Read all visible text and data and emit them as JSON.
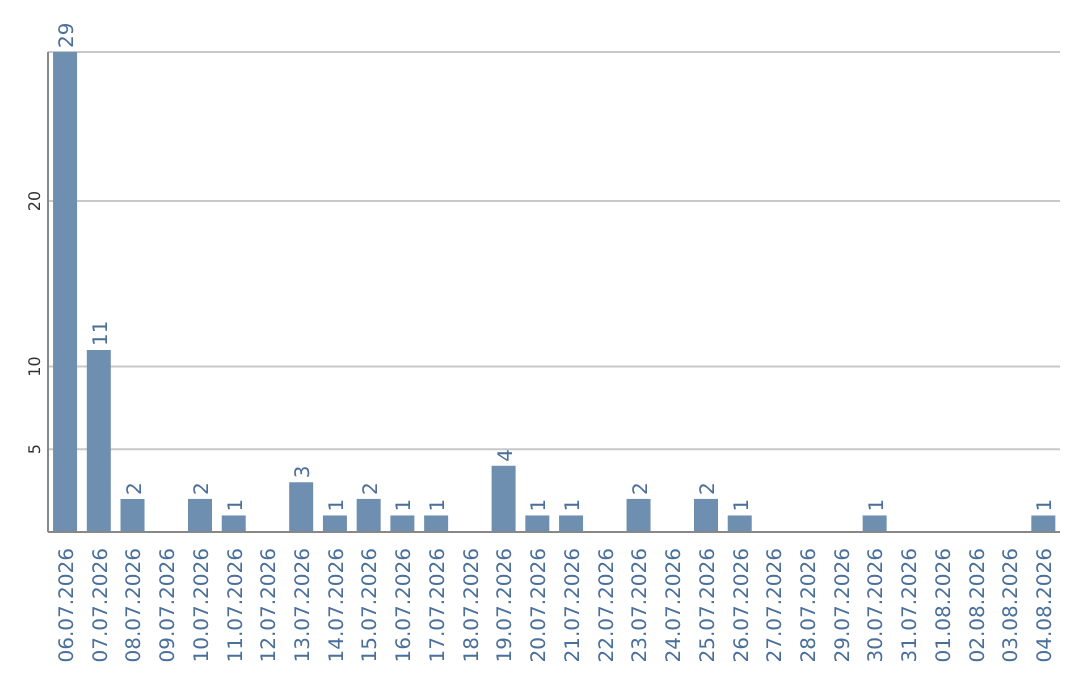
{
  "chart_data": {
    "type": "bar",
    "categories": [
      "06.07.2026",
      "07.07.2026",
      "08.07.2026",
      "09.07.2026",
      "10.07.2026",
      "11.07.2026",
      "12.07.2026",
      "13.07.2026",
      "14.07.2026",
      "15.07.2026",
      "16.07.2026",
      "17.07.2026",
      "18.07.2026",
      "19.07.2026",
      "20.07.2026",
      "21.07.2026",
      "22.07.2026",
      "23.07.2026",
      "24.07.2026",
      "25.07.2026",
      "26.07.2026",
      "27.07.2026",
      "28.07.2026",
      "29.07.2026",
      "30.07.2026",
      "31.07.2026",
      "01.08.2026",
      "02.08.2026",
      "03.08.2026",
      "04.08.2026"
    ],
    "values": [
      29,
      11,
      2,
      0,
      2,
      1,
      0,
      3,
      1,
      2,
      1,
      1,
      0,
      4,
      1,
      1,
      0,
      2,
      0,
      2,
      1,
      0,
      0,
      0,
      1,
      0,
      0,
      0,
      0,
      1
    ],
    "value_labels": [
      "29",
      "11",
      "2",
      null,
      "2",
      "1",
      null,
      "3",
      "1",
      "2",
      "1",
      "1",
      null,
      "4",
      "1",
      "1",
      null,
      "2",
      null,
      "2",
      "1",
      null,
      null,
      null,
      "1",
      null,
      null,
      null,
      null,
      "1"
    ],
    "color": "#6f8fb0",
    "ylim": [
      0,
      29
    ],
    "yticks": [
      5,
      10,
      20
    ],
    "grid": "y"
  }
}
